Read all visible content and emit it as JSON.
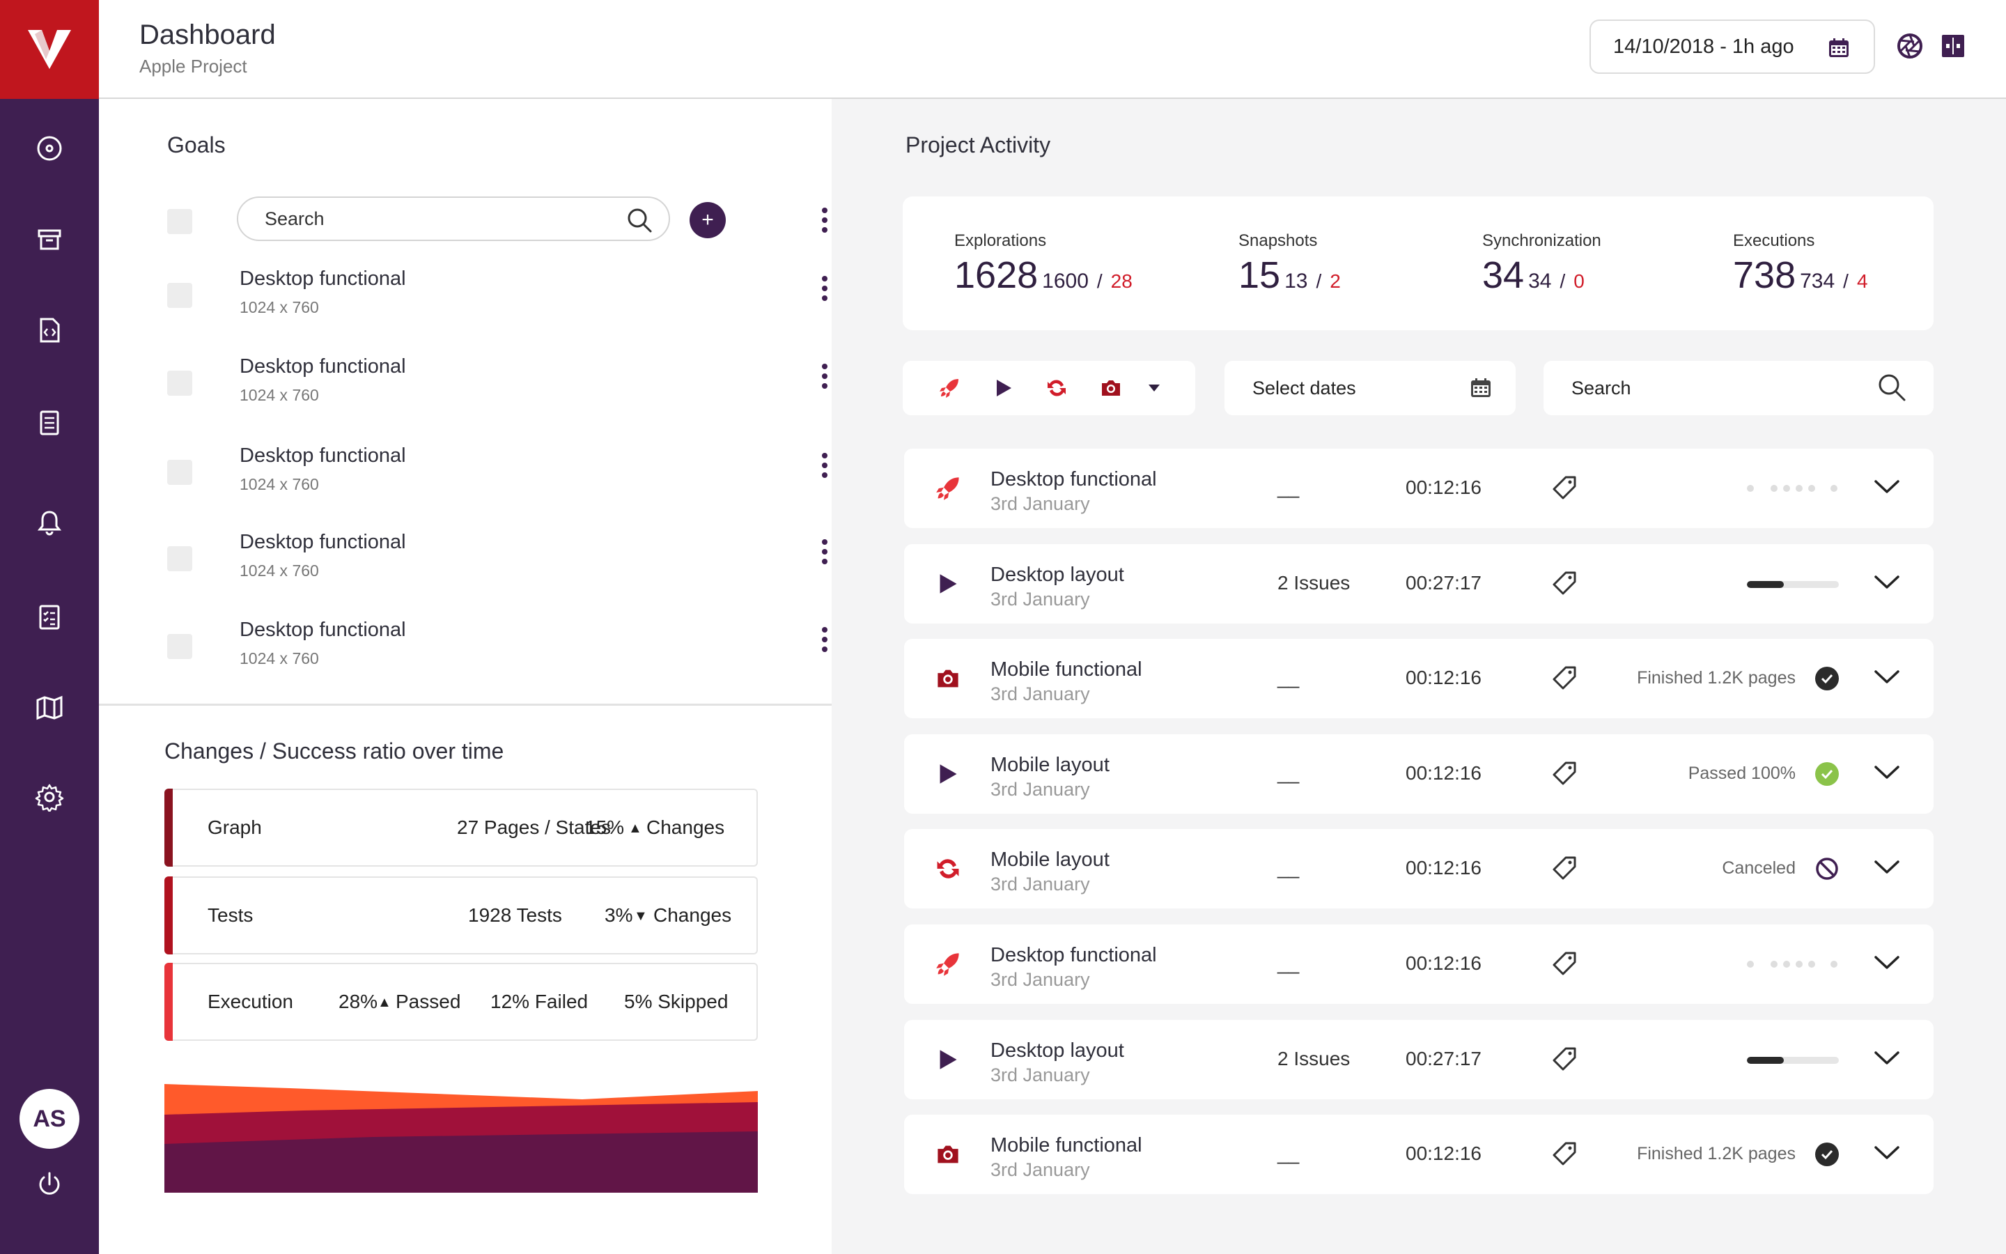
{
  "header": {
    "title": "Dashboard",
    "subtitle": "Apple Project",
    "date_range": "14/10/2018 - 1h ago"
  },
  "user": {
    "initials": "AS"
  },
  "sidebar": {
    "items": [
      {
        "icon": "target-icon"
      },
      {
        "icon": "archive-icon"
      },
      {
        "icon": "code-file-icon"
      },
      {
        "icon": "document-icon"
      },
      {
        "icon": "bell-icon"
      },
      {
        "icon": "checklist-icon"
      },
      {
        "icon": "map-icon"
      },
      {
        "icon": "gear-icon"
      }
    ]
  },
  "goals": {
    "title": "Goals",
    "search_placeholder": "Search",
    "items": [
      {
        "title": "Desktop functional",
        "size": "1024 x 760"
      },
      {
        "title": "Desktop functional",
        "size": "1024 x 760"
      },
      {
        "title": "Desktop functional",
        "size": "1024 x 760"
      },
      {
        "title": "Desktop functional",
        "size": "1024 x 760"
      },
      {
        "title": "Desktop functional",
        "size": "1024 x 760"
      }
    ]
  },
  "changes": {
    "title": "Changes / Success ratio over time",
    "graph": {
      "label": "Graph",
      "pages": "27 Pages",
      "states": "/ States",
      "pct": "15%",
      "arrow": "▲",
      "changes": "Changes",
      "color": "#8a1320"
    },
    "tests": {
      "label": "Tests",
      "count": "1928 Tests",
      "pct": "3%",
      "arrow": "▼",
      "changes": "Changes",
      "color": "#b0121f"
    },
    "execution": {
      "label": "Execution",
      "passed_pct": "28%",
      "arrow": "▲",
      "passed": "Passed",
      "failed": "12% Failed",
      "skipped": "5% Skipped",
      "color": "#e8343a"
    }
  },
  "activity": {
    "title": "Project Activity",
    "summary": {
      "explorations": {
        "label": "Explorations",
        "main": "1628",
        "sub": "1600",
        "slash": "/",
        "red": "28"
      },
      "snapshots": {
        "label": "Snapshots",
        "main": "15",
        "sub": "13",
        "slash": "/",
        "red": "2"
      },
      "synchronization": {
        "label": "Synchronization",
        "main": "34",
        "sub": "34",
        "slash": "/",
        "red": "0"
      },
      "executions": {
        "label": "Executions",
        "main": "738",
        "sub": "734",
        "slash": "/",
        "red": "4"
      }
    },
    "dates_placeholder": "Select dates",
    "search_placeholder": "Search",
    "rows": [
      {
        "type": "rocket-icon",
        "title": "Desktop functional",
        "date": "3rd January",
        "issues": "__",
        "time": "00:12:16",
        "status": "",
        "state": "dots"
      },
      {
        "type": "play-icon",
        "title": "Desktop layout",
        "date": "3rd January",
        "issues": "2 Issues",
        "time": "00:27:17",
        "status": "",
        "state": "progress",
        "progress": 0.4
      },
      {
        "type": "camera-icon",
        "title": "Mobile functional",
        "date": "3rd January",
        "issues": "__",
        "time": "00:12:16",
        "status": "Finished 1.2K pages",
        "state": "finished"
      },
      {
        "type": "play-icon",
        "title": "Mobile layout",
        "date": "3rd January",
        "issues": "__",
        "time": "00:12:16",
        "status": "Passed 100%",
        "state": "passed"
      },
      {
        "type": "sync-icon",
        "title": "Mobile layout",
        "date": "3rd January",
        "issues": "__",
        "time": "00:12:16",
        "status": "Canceled",
        "state": "canceled"
      },
      {
        "type": "rocket-icon",
        "title": "Desktop functional",
        "date": "3rd January",
        "issues": "__",
        "time": "00:12:16",
        "status": "",
        "state": "dots"
      },
      {
        "type": "play-icon",
        "title": "Desktop layout",
        "date": "3rd January",
        "issues": "2 Issues",
        "time": "00:27:17",
        "status": "",
        "state": "progress",
        "progress": 0.4
      },
      {
        "type": "camera-icon",
        "title": "Mobile functional",
        "date": "3rd January",
        "issues": "__",
        "time": "00:12:16",
        "status": "Finished 1.2K pages",
        "state": "finished"
      }
    ]
  },
  "colors": {
    "sidebar": "#3f1f51",
    "brand_red": "#c0161e",
    "accent_red": "#d11d2a",
    "pass_green": "#8bc34a"
  }
}
